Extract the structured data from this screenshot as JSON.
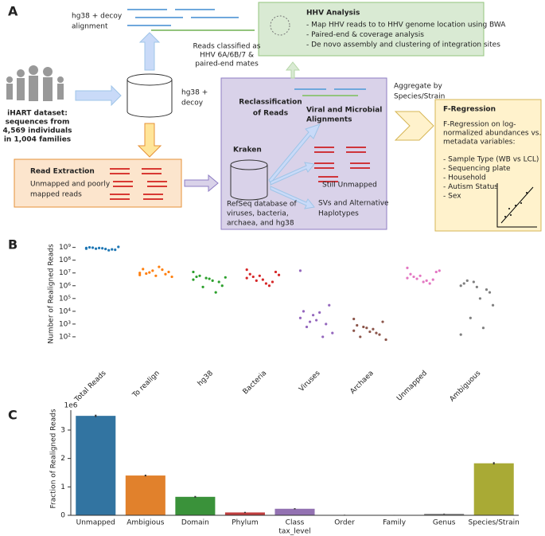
{
  "panel_labels": [
    "A",
    "B",
    "C"
  ],
  "diagram": {
    "alignment_label": [
      "hg38 + decoy",
      "alignment"
    ],
    "hhv": {
      "title": "HHV Analysis",
      "bullets": [
        "- Map HHV reads to to HHV genome location using BWA",
        "- Paired-end & coverage analysis",
        "- De novo assembly and clustering of integration sites"
      ]
    },
    "hhv_classified": [
      "Reads classified as",
      "HHV 6A/6B/7 &",
      "paired-end mates"
    ],
    "dataset": [
      "iHART dataset:",
      "sequences from",
      "4,569 individuals",
      "in 1,004 families"
    ],
    "hg38_db": [
      "hg38 +",
      "decoy"
    ],
    "read_extraction": {
      "title": "Read Extraction",
      "text": [
        "Unmapped and poorly",
        "mapped reads"
      ]
    },
    "reclassification": {
      "title": [
        "Reclassification",
        "of Reads"
      ],
      "kraken": "Kraken",
      "database": [
        "RefSeq database of",
        "viruses, bacteria,",
        "archaea, and hg38"
      ],
      "viral": [
        "Viral and Microbial",
        "Alignments"
      ],
      "unmapped": "Still Unmapped",
      "svs": [
        "SVs and Alternative",
        "Haplotypes"
      ]
    },
    "aggregate": [
      "Aggregate by",
      "Species/Strain"
    ],
    "fregression": {
      "title": "F-Regression",
      "intro": [
        "F-Regression on log-",
        "normalized abundances vs.",
        "metadata variables:"
      ],
      "variables": [
        "- Sample Type (WB vs LCL)",
        "- Sequencing plate",
        "- Household",
        "- Autism Status",
        "- Sex"
      ]
    }
  },
  "chart_data": [
    {
      "type": "strip",
      "ylabel": "Number of Realigned Reads",
      "log_y": true,
      "ylim": [
        1,
        3000000000
      ],
      "yticks": [
        {
          "value": 100,
          "label": "10²"
        },
        {
          "value": 1000,
          "label": "10³"
        },
        {
          "value": 10000,
          "label": "10⁴"
        },
        {
          "value": 100000,
          "label": "10⁵"
        },
        {
          "value": 1000000,
          "label": "10⁶"
        },
        {
          "value": 10000000,
          "label": "10⁷"
        },
        {
          "value": 100000000,
          "label": "10⁸"
        },
        {
          "value": 1000000000,
          "label": "10⁹"
        }
      ],
      "categories": [
        "Total Reads",
        "To realign",
        "hg38",
        "Bacteria",
        "Viruses",
        "Archaea",
        "Unmapped",
        "Ambiguous"
      ],
      "colors": [
        "#1f77b4",
        "#ff7f0e",
        "#2ca02c",
        "#d62728",
        "#9467bd",
        "#8c564b",
        "#e377c2",
        "#7f7f7f"
      ],
      "values": [
        [
          800000000,
          900000000,
          700000000,
          1000000000,
          850000000,
          650000000,
          950000000,
          750000000,
          1100000000,
          800000000,
          600000000,
          900000000
        ],
        [
          10000000,
          15000000,
          8000000,
          20000000,
          6000000,
          12000000,
          9000000,
          30000000,
          5000000,
          11000000,
          18000000,
          7000000
        ],
        [
          3000000,
          4000000,
          2000000,
          5000000,
          3500000,
          1000000,
          6000000,
          2500000,
          4500000,
          800000,
          300000,
          12000000
        ],
        [
          4000000,
          6000000,
          2000000,
          8000000,
          3000000,
          12000000,
          5000000,
          1500000,
          7000000,
          2500000,
          1000000,
          18000000
        ],
        [
          3000,
          5000,
          1000,
          10000,
          2000,
          30000,
          600,
          8000,
          200,
          1500,
          100,
          15000000
        ],
        [
          300,
          500,
          150,
          800,
          250,
          1500,
          100,
          400,
          60,
          600,
          200,
          2500
        ],
        [
          4000000,
          6000000,
          3000000,
          8000000,
          2000000,
          12000000,
          5000000,
          2500000,
          15000000,
          3500000,
          1500000,
          25000000
        ],
        [
          1000000,
          2000000,
          500000,
          1500000,
          800000,
          300000,
          2500000,
          100000,
          30000,
          3000,
          500,
          150
        ]
      ]
    },
    {
      "type": "bar",
      "ylabel": "Fraction of Realigned Reads",
      "xlabel": "tax_level",
      "offset_label": "1e6",
      "ylim": [
        0,
        3.7
      ],
      "yticks": [
        0,
        1,
        2,
        3
      ],
      "categories": [
        "Unmapped",
        "Ambigious",
        "Domain",
        "Phylum",
        "Class",
        "Order",
        "Family",
        "Genus",
        "Species/Strain"
      ],
      "colors": [
        "#3274a1",
        "#e1812c",
        "#3a923a",
        "#c03d3e",
        "#9372b2",
        "#845b53",
        "#d684bd",
        "#7f7f7f",
        "#a9aa35"
      ],
      "values": [
        3.5,
        1.4,
        0.65,
        0.1,
        0.23,
        0.01,
        0.005,
        0.05,
        1.83
      ],
      "errors": [
        0.04,
        0.03,
        0.03,
        0.02,
        0.02,
        0.01,
        0.01,
        0.01,
        0.04
      ]
    }
  ]
}
